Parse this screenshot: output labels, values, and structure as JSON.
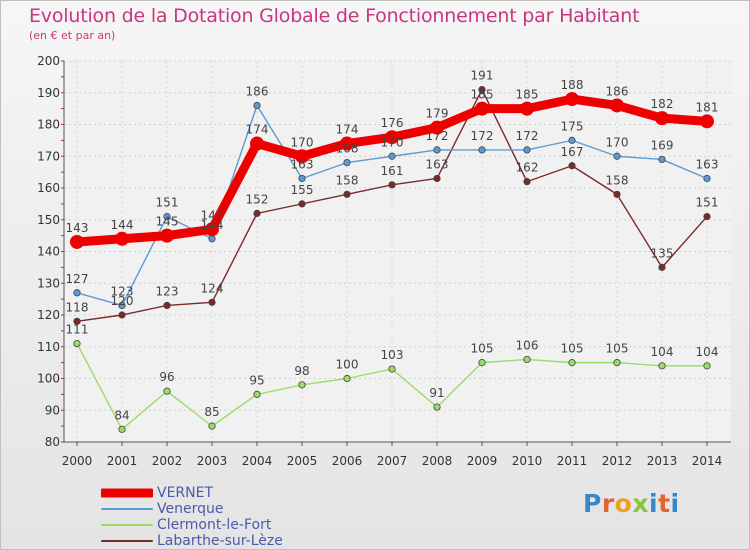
{
  "chart_data": {
    "type": "line",
    "title": "Evolution de la Dotation Globale de Fonctionnement par Habitant",
    "subtitle": "(en € et par an)",
    "xlabel": "",
    "ylabel": "",
    "categories": [
      "2000",
      "2001",
      "2002",
      "2003",
      "2004",
      "2005",
      "2006",
      "2007",
      "2008",
      "2009",
      "2010",
      "2011",
      "2012",
      "2013",
      "2014"
    ],
    "ylim": [
      80,
      200
    ],
    "yticks": [
      80,
      90,
      100,
      110,
      120,
      130,
      140,
      150,
      160,
      170,
      180,
      190,
      200
    ],
    "grid": true,
    "legend_position": "bottom-left",
    "series": [
      {
        "name": "VERNET",
        "color": "#ee0000",
        "values": [
          143,
          144,
          145,
          147,
          174,
          170,
          174,
          176,
          179,
          185,
          185,
          188,
          186,
          182,
          181
        ]
      },
      {
        "name": "Venerque",
        "color": "#5b9bd5",
        "values": [
          127,
          123,
          151,
          144,
          186,
          163,
          168,
          170,
          172,
          172,
          172,
          175,
          170,
          169,
          163
        ]
      },
      {
        "name": "Clermont-le-Fort",
        "color": "#99dd66",
        "values": [
          111,
          84,
          96,
          85,
          95,
          98,
          100,
          103,
          91,
          105,
          106,
          105,
          105,
          104,
          104
        ]
      },
      {
        "name": "Labarthe-sur-Lèze",
        "color": "#7b2a2a",
        "values": [
          118,
          120,
          123,
          124,
          152,
          155,
          158,
          161,
          163,
          191,
          162,
          167,
          158,
          135,
          151
        ]
      }
    ]
  },
  "brand": {
    "logo_text": [
      "P",
      "r",
      "o",
      "x",
      "i",
      "t",
      "i"
    ]
  }
}
